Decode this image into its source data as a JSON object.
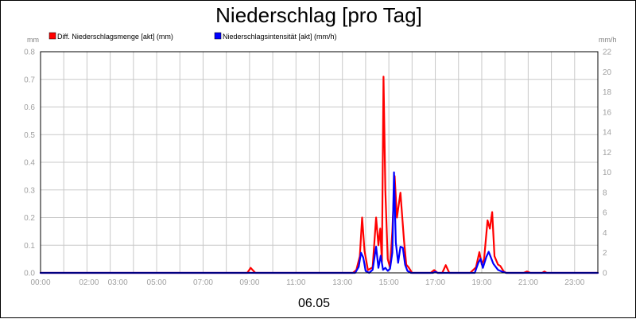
{
  "chart_data": {
    "type": "line",
    "title": "Niederschlag [pro Tag]",
    "left_unit": "mm",
    "right_unit": "mm/h",
    "date_label": "06.05",
    "x_tick_labels": [
      "00:00",
      "02:00",
      "03:00",
      "05:00",
      "07:00",
      "09:00",
      "11:00",
      "13:00",
      "15:00",
      "17:00",
      "19:00",
      "21:00",
      "23:00"
    ],
    "x_tick_hours": [
      0,
      2,
      3,
      5,
      7,
      9,
      11,
      13,
      15,
      17,
      19,
      21,
      23
    ],
    "x_range_hours": [
      0,
      24
    ],
    "y_left_ticks": [
      "0.0",
      "0.1",
      "0.2",
      "0.3",
      "0.4",
      "0.5",
      "0.6",
      "0.7",
      "0.8"
    ],
    "y_left_range": [
      0,
      0.8
    ],
    "y_right_ticks": [
      "0",
      "2",
      "4",
      "6",
      "8",
      "10",
      "12",
      "14",
      "16",
      "18",
      "20",
      "22"
    ],
    "y_right_range": [
      0,
      22
    ],
    "grid": true,
    "legend_position": "top-left",
    "series": [
      {
        "name": "Diff. Niederschlagsmenge [akt] (mm)",
        "axis": "left",
        "color": "#ff0000",
        "points": [
          [
            0,
            0
          ],
          [
            8.9,
            0
          ],
          [
            9.05,
            0.018
          ],
          [
            9.25,
            0
          ],
          [
            13.45,
            0
          ],
          [
            13.6,
            0.01
          ],
          [
            13.75,
            0.06
          ],
          [
            13.85,
            0.2
          ],
          [
            13.95,
            0.08
          ],
          [
            14.1,
            0.01
          ],
          [
            14.3,
            0.02
          ],
          [
            14.45,
            0.2
          ],
          [
            14.55,
            0.1
          ],
          [
            14.63,
            0.16
          ],
          [
            14.7,
            0.04
          ],
          [
            14.77,
            0.71
          ],
          [
            14.85,
            0.3
          ],
          [
            14.95,
            0.05
          ],
          [
            15.05,
            0.02
          ],
          [
            15.15,
            0.15
          ],
          [
            15.25,
            0.35
          ],
          [
            15.35,
            0.2
          ],
          [
            15.5,
            0.29
          ],
          [
            15.65,
            0.12
          ],
          [
            15.75,
            0.03
          ],
          [
            15.85,
            0.02
          ],
          [
            16.0,
            0
          ],
          [
            16.8,
            0
          ],
          [
            16.95,
            0.01
          ],
          [
            17.1,
            0
          ],
          [
            17.3,
            0
          ],
          [
            17.45,
            0.028
          ],
          [
            17.6,
            0
          ],
          [
            18.5,
            0
          ],
          [
            18.75,
            0.02
          ],
          [
            18.9,
            0.075
          ],
          [
            19.0,
            0.03
          ],
          [
            19.1,
            0.05
          ],
          [
            19.25,
            0.19
          ],
          [
            19.35,
            0.16
          ],
          [
            19.45,
            0.22
          ],
          [
            19.55,
            0.06
          ],
          [
            19.7,
            0.03
          ],
          [
            19.8,
            0.025
          ],
          [
            19.95,
            0.005
          ],
          [
            20.05,
            0
          ],
          [
            20.8,
            0
          ],
          [
            20.95,
            0.005
          ],
          [
            21.1,
            0
          ],
          [
            21.6,
            0
          ],
          [
            21.7,
            0.005
          ],
          [
            21.8,
            0
          ],
          [
            24,
            0
          ]
        ]
      },
      {
        "name": "Niederschlagsintensität [akt] (mm/h)",
        "axis": "right",
        "color": "#0000ff",
        "points": [
          [
            0,
            0
          ],
          [
            13.55,
            0
          ],
          [
            13.7,
            0.6
          ],
          [
            13.8,
            2
          ],
          [
            13.9,
            1.5
          ],
          [
            14.0,
            0.2
          ],
          [
            14.15,
            0
          ],
          [
            14.3,
            0.3
          ],
          [
            14.45,
            2.6
          ],
          [
            14.55,
            0.5
          ],
          [
            14.65,
            1.7
          ],
          [
            14.75,
            0.3
          ],
          [
            14.85,
            0.5
          ],
          [
            14.95,
            0.2
          ],
          [
            15.05,
            0.4
          ],
          [
            15.15,
            2
          ],
          [
            15.22,
            10
          ],
          [
            15.3,
            3
          ],
          [
            15.4,
            1
          ],
          [
            15.5,
            2.6
          ],
          [
            15.6,
            2.5
          ],
          [
            15.7,
            0.8
          ],
          [
            15.8,
            0.2
          ],
          [
            15.95,
            0
          ],
          [
            16.9,
            0
          ],
          [
            17.0,
            0.1
          ],
          [
            17.1,
            0
          ],
          [
            18.7,
            0
          ],
          [
            18.85,
            1
          ],
          [
            18.95,
            1.4
          ],
          [
            19.05,
            0.5
          ],
          [
            19.2,
            1.6
          ],
          [
            19.3,
            2.1
          ],
          [
            19.4,
            1.5
          ],
          [
            19.5,
            0.9
          ],
          [
            19.6,
            0.6
          ],
          [
            19.7,
            0.3
          ],
          [
            19.9,
            0.1
          ],
          [
            20.05,
            0
          ],
          [
            24,
            0
          ]
        ]
      }
    ]
  }
}
